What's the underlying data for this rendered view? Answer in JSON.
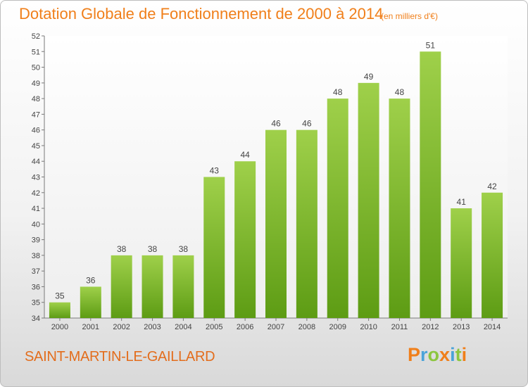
{
  "header": {
    "title": "Dotation Globale de Fonctionnement de 2000 à 2014",
    "unit": "(en milliers d'€)"
  },
  "footer": {
    "commune": "SAINT-MARTIN-LE-GAILLARD",
    "logo": "Proxiti"
  },
  "colors": {
    "title": "#f07f1a",
    "bar_top": "#9fd04a",
    "bar_bottom": "#5d9c14",
    "logo": [
      "#f07f1a",
      "#4aa3d9",
      "#8cc63f",
      "#f07f1a",
      "#4aa3d9",
      "#8cc63f",
      "#f07f1a"
    ]
  },
  "chart_data": {
    "type": "bar",
    "title": "Dotation Globale de Fonctionnement de 2000 à 2014",
    "subtitle": "(en milliers d'€)",
    "xlabel": "",
    "ylabel": "",
    "categories": [
      "2000",
      "2001",
      "2002",
      "2003",
      "2004",
      "2005",
      "2006",
      "2007",
      "2008",
      "2009",
      "2010",
      "2011",
      "2012",
      "2013",
      "2014"
    ],
    "values": [
      35,
      36,
      38,
      38,
      38,
      43,
      44,
      46,
      46,
      48,
      49,
      48,
      51,
      41,
      42
    ],
    "ylim": [
      34,
      52
    ],
    "yticks": [
      34,
      35,
      36,
      37,
      38,
      39,
      40,
      41,
      42,
      43,
      44,
      45,
      46,
      47,
      48,
      49,
      50,
      51,
      52
    ],
    "grid": false,
    "legend": "none"
  }
}
